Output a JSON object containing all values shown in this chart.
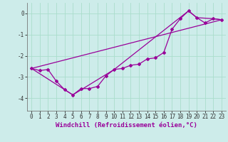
{
  "xlabel": "Windchill (Refroidissement éolien,°C)",
  "bg_color": "#cdecea",
  "line_color": "#990099",
  "grid_color": "#aaddcc",
  "xlim": [
    -0.5,
    23.5
  ],
  "ylim": [
    -4.6,
    0.5
  ],
  "yticks": [
    0,
    -1,
    -2,
    -3,
    -4
  ],
  "xticks": [
    0,
    1,
    2,
    3,
    4,
    5,
    6,
    7,
    8,
    9,
    10,
    11,
    12,
    13,
    14,
    15,
    16,
    17,
    18,
    19,
    20,
    21,
    22,
    23
  ],
  "series1_x": [
    0,
    1,
    2,
    3,
    4,
    5,
    6,
    7,
    8,
    9,
    10,
    11,
    12,
    13,
    14,
    15,
    16,
    17,
    18,
    19,
    20,
    21,
    22,
    23
  ],
  "series1_y": [
    -2.6,
    -2.7,
    -2.65,
    -3.2,
    -3.6,
    -3.85,
    -3.55,
    -3.55,
    -3.45,
    -2.95,
    -2.65,
    -2.6,
    -2.45,
    -2.4,
    -2.15,
    -2.1,
    -1.85,
    -0.75,
    -0.25,
    0.12,
    -0.2,
    -0.45,
    -0.25,
    -0.3
  ],
  "series2_x": [
    0,
    23
  ],
  "series2_y": [
    -2.6,
    -0.3
  ],
  "series3_x": [
    0,
    5,
    10,
    19,
    20,
    22,
    23
  ],
  "series3_y": [
    -2.6,
    -3.85,
    -2.65,
    0.12,
    -0.2,
    -0.25,
    -0.3
  ],
  "tick_fontsize": 5.5,
  "xlabel_fontsize": 6.5
}
